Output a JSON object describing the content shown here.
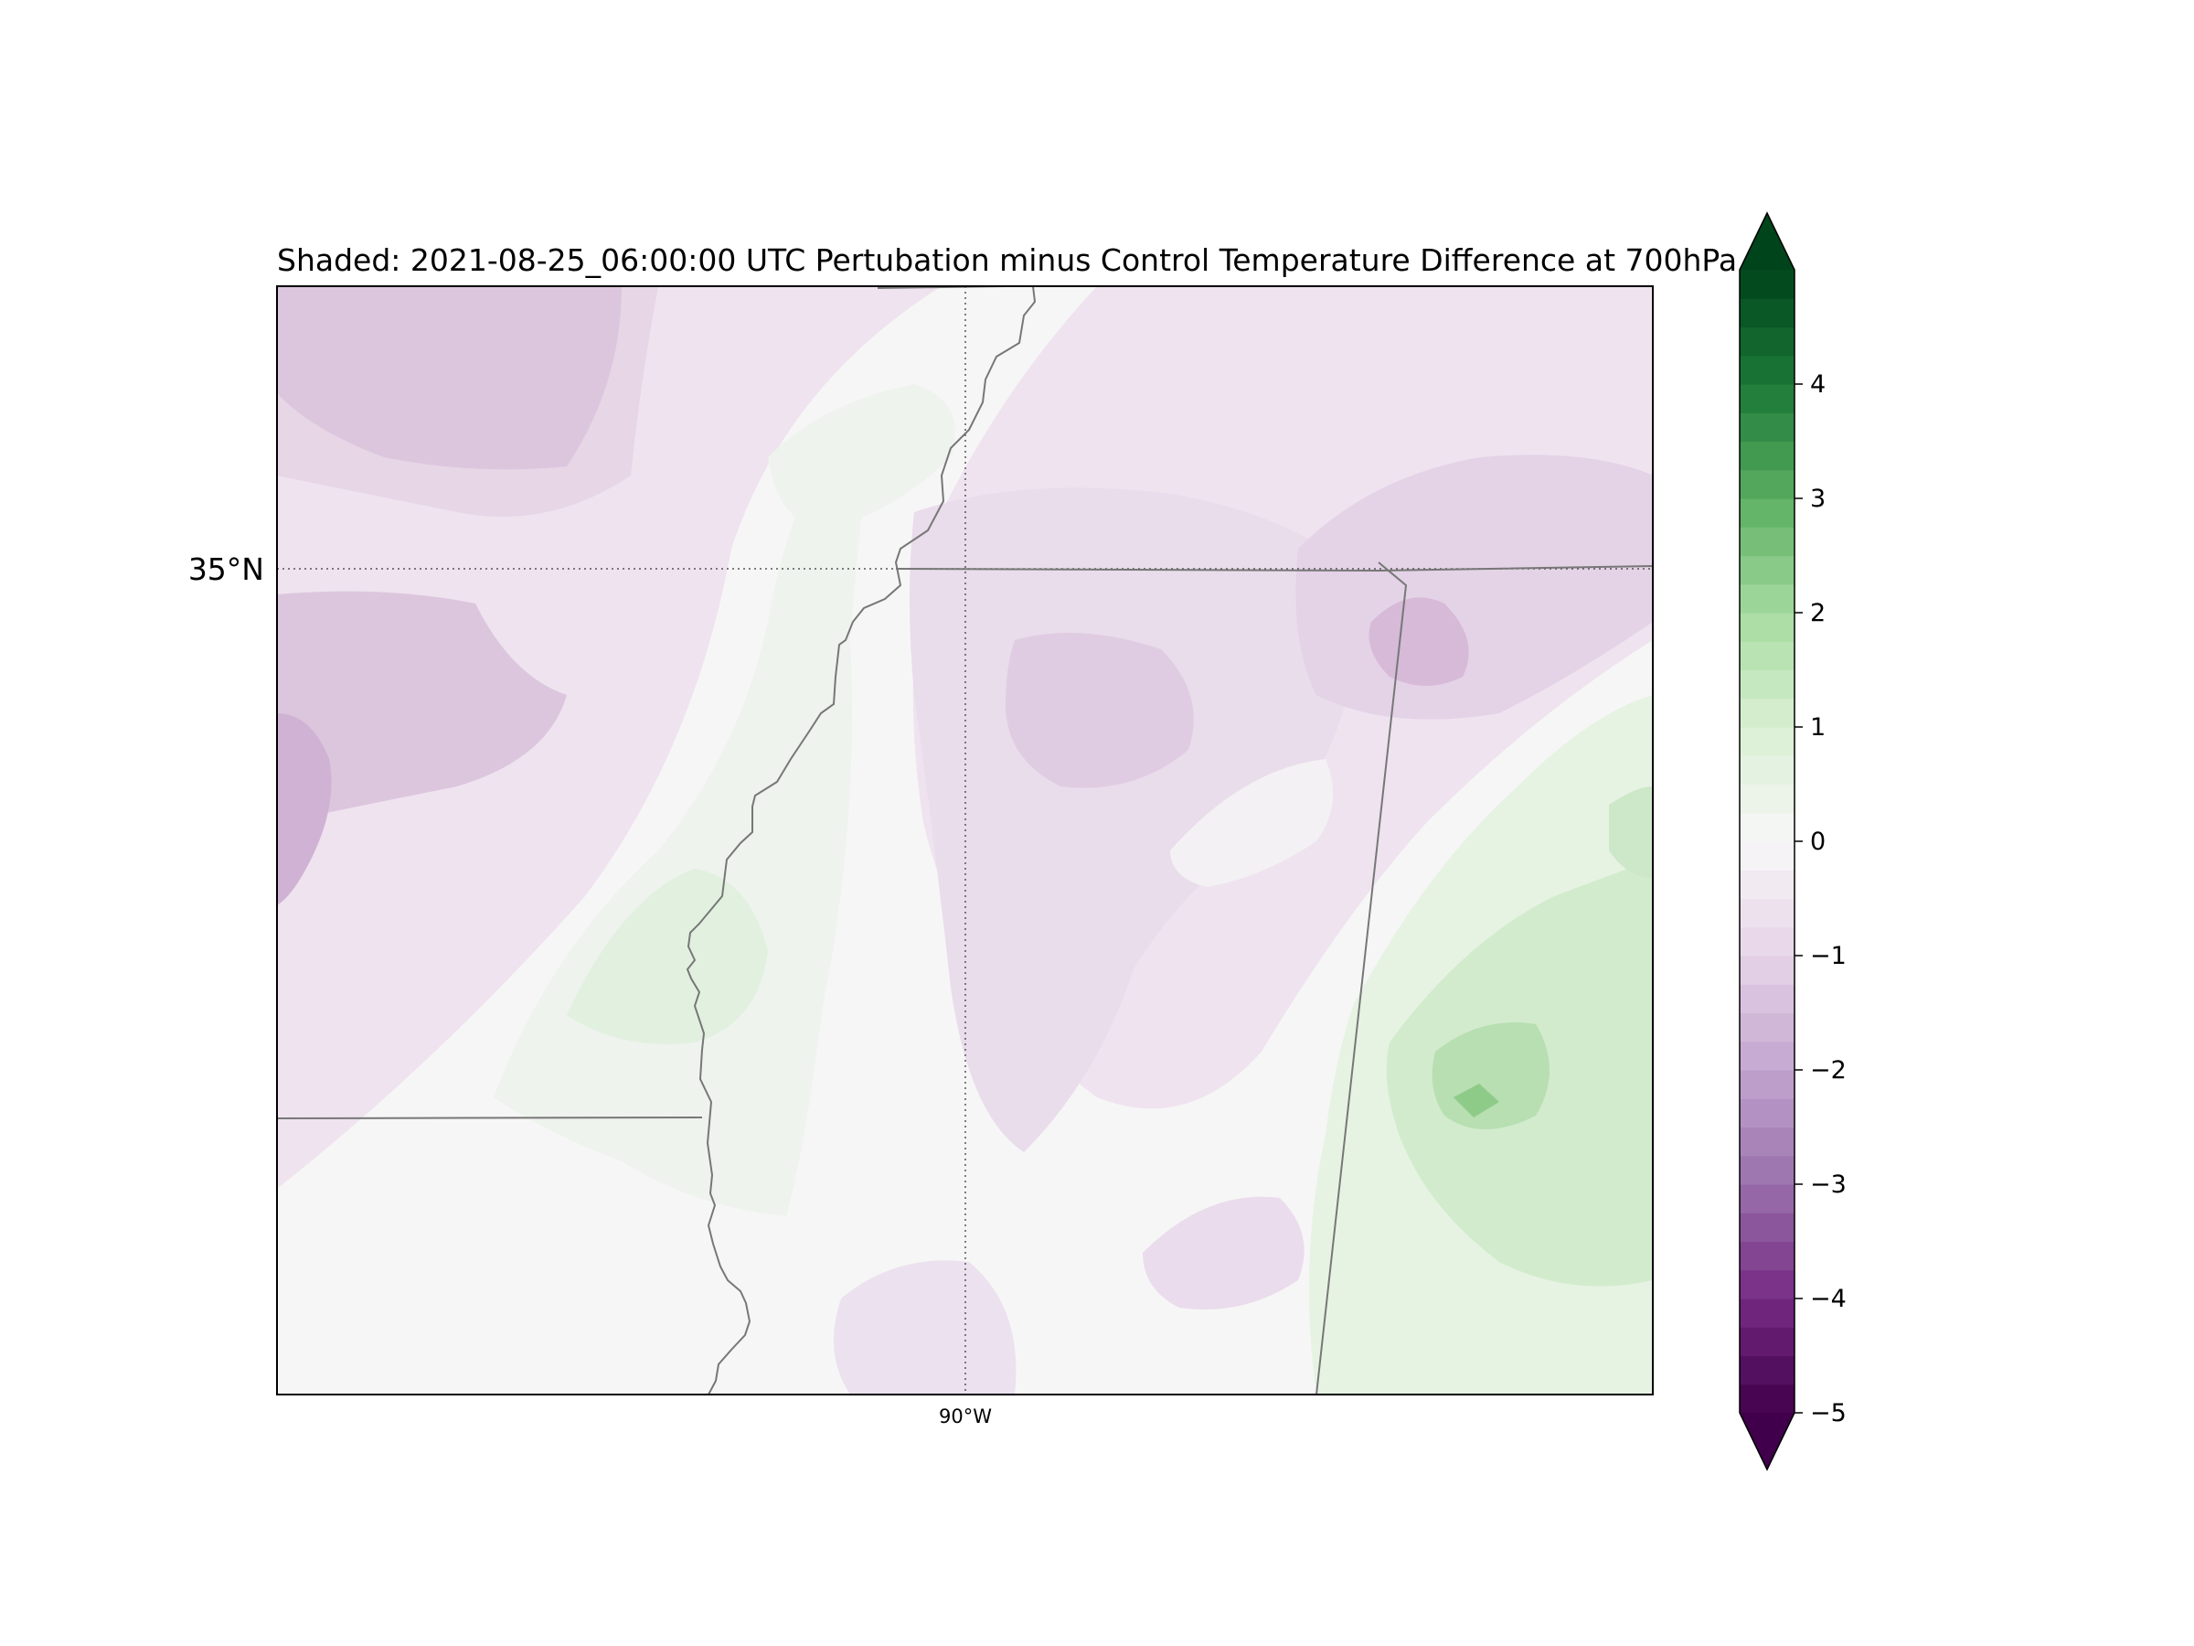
{
  "title": "Shaded: 2021-08-25_06:00:00 UTC Pertubation minus Control Temperature Difference at 700hPa",
  "gridlines": {
    "lat_label": "35°N",
    "lon_label": "90°W"
  },
  "colorbar": {
    "min": -5,
    "max": 4.75,
    "step": 0.25,
    "extend": "both",
    "ticks": [
      -5,
      -4,
      -3,
      -2,
      -1,
      0,
      1,
      2,
      3,
      4
    ],
    "tick_labels": [
      "−5",
      "−4",
      "−3",
      "−2",
      "−1",
      "0",
      "1",
      "2",
      "3",
      "4"
    ],
    "colormap": "PRGn",
    "low_color": "#40004b",
    "high_color": "#00441b"
  },
  "field": {
    "description_units": "temperature difference",
    "regions": [
      {
        "name": "northwest-cool",
        "value": -1.25
      },
      {
        "name": "west-edge-cool",
        "value": -2.0
      },
      {
        "name": "central-cool",
        "value": -1.0
      },
      {
        "name": "northeast-cool",
        "value": -1.5
      },
      {
        "name": "southeast-warm",
        "value": 1.5
      },
      {
        "name": "southeast-warm-core",
        "value": 2.25
      },
      {
        "name": "west-warm",
        "value": 0.75
      },
      {
        "name": "south-cool",
        "value": -0.75
      }
    ]
  }
}
